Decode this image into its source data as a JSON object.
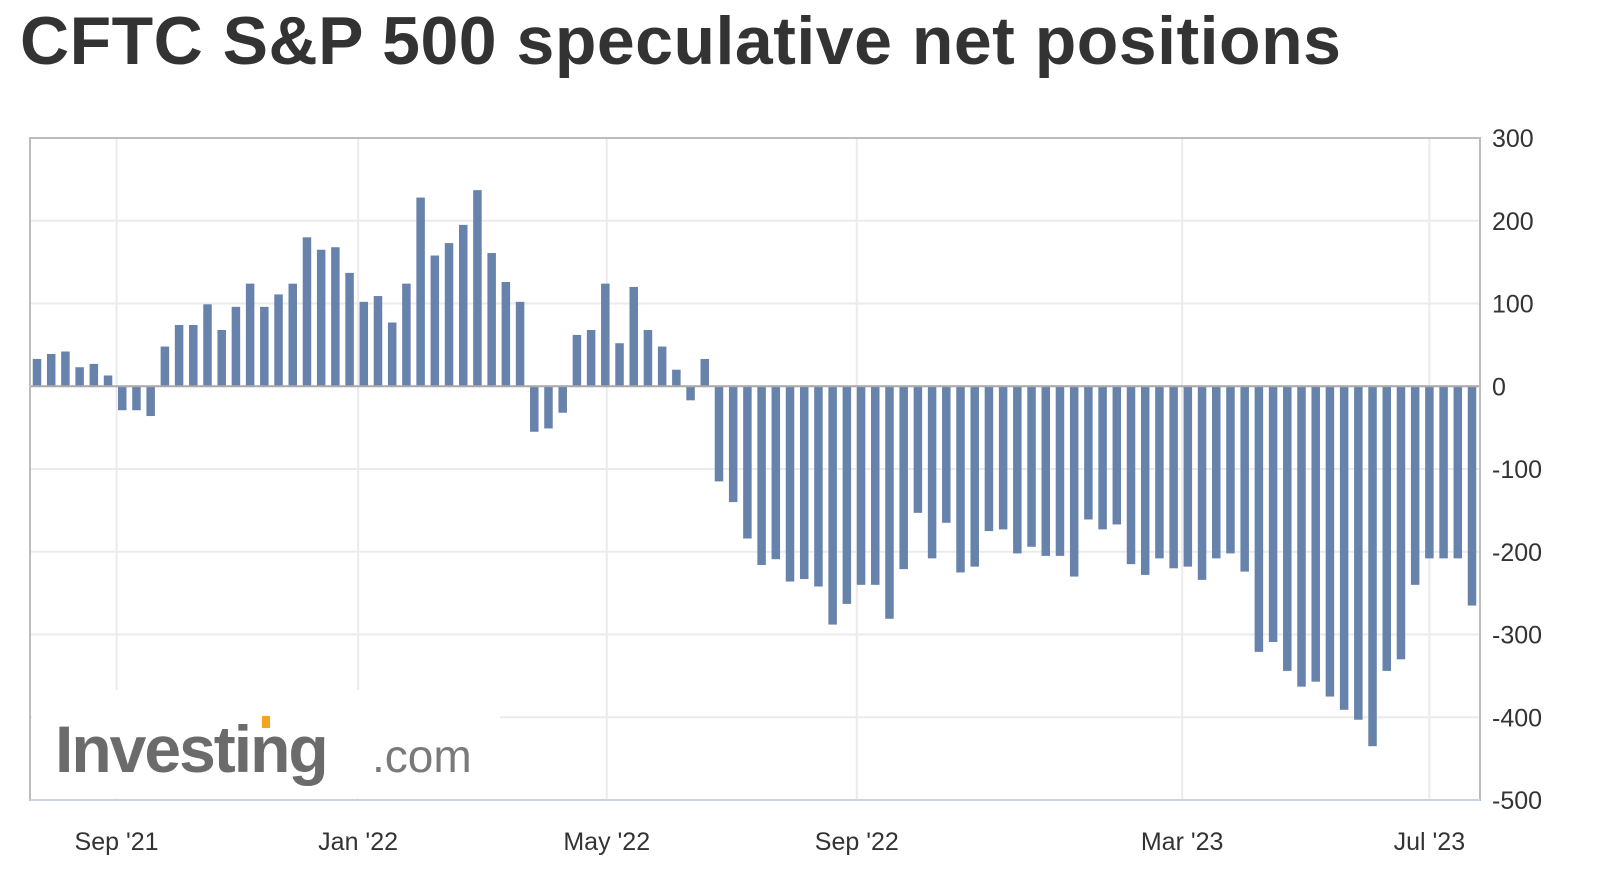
{
  "chart_data": {
    "type": "bar",
    "title": "CFTC S&P 500 speculative net positions",
    "xlabel": "",
    "ylabel": "",
    "ylim": [
      -500,
      300
    ],
    "y_ticks": [
      300,
      200,
      100,
      0,
      -100,
      -200,
      -300,
      -400,
      -500
    ],
    "x_ticks": [
      {
        "label": "Sep '21",
        "at": 5.6
      },
      {
        "label": "Jan '22",
        "at": 22.6
      },
      {
        "label": "May '22",
        "at": 40.1
      },
      {
        "label": "Sep '22",
        "at": 57.7
      },
      {
        "label": "Mar '23",
        "at": 80.6
      },
      {
        "label": "Jul '23",
        "at": 98.0
      }
    ],
    "grid": true,
    "color": "#6783ab",
    "values": [
      33,
      39,
      42,
      23,
      27,
      13,
      -29,
      -29,
      -36,
      48,
      74,
      74,
      99,
      68,
      96,
      124,
      96,
      111,
      124,
      180,
      165,
      168,
      137,
      102,
      109,
      77,
      124,
      228,
      158,
      173,
      195,
      237,
      161,
      126,
      102,
      -55,
      -51,
      -32,
      62,
      68,
      124,
      52,
      120,
      68,
      48,
      20,
      -17,
      33,
      -115,
      -140,
      -184,
      -216,
      -209,
      -236,
      -233,
      -242,
      -288,
      -263,
      -240,
      -240,
      -281,
      -221,
      -153,
      -208,
      -165,
      -225,
      -218,
      -175,
      -173,
      -202,
      -194,
      -205,
      -205,
      -230,
      -161,
      -173,
      -167,
      -215,
      -228,
      -208,
      -220,
      -218,
      -234,
      -208,
      -202,
      -224,
      -321,
      -309,
      -344,
      -363,
      -357,
      -375,
      -391,
      -403,
      -435,
      -344,
      -330,
      -240,
      -208,
      -208,
      -208,
      -265
    ]
  },
  "watermark": {
    "brand": "Investing",
    "suffix": ".com"
  }
}
